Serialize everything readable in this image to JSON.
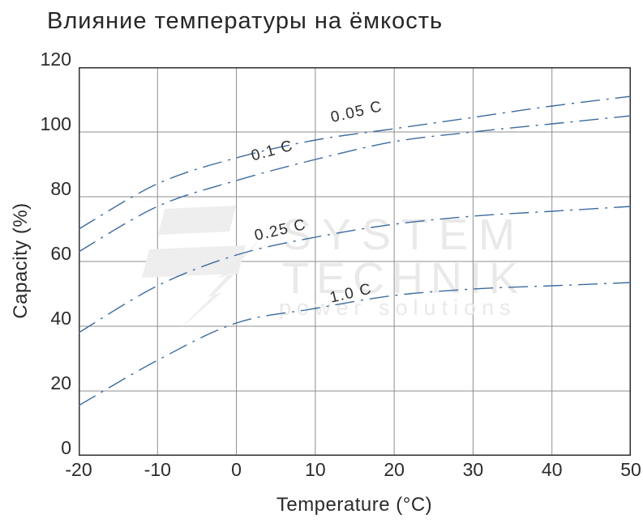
{
  "title": "Влияние температуры на ёмкость",
  "watermark": {
    "line1": "SYSTEM",
    "line2": "TECHNIK",
    "line3": "power solutions",
    "color": "#e9e9e9"
  },
  "colors": {
    "text": "#2b2b2b",
    "grid": "#8f8f8f",
    "border": "#2f2f2f",
    "curve": "#3c6b9e",
    "watermark": "#eeeeee"
  },
  "chart_data": {
    "type": "line",
    "title": "Влияние температуры на ёмкость",
    "xlabel": "Temperature (°C)",
    "ylabel": "Capacity (%)",
    "xlim": [
      -20,
      50
    ],
    "ylim": [
      0,
      120
    ],
    "x_ticks": [
      -20,
      -10,
      0,
      10,
      20,
      30,
      40,
      50
    ],
    "y_ticks": [
      0,
      20,
      40,
      60,
      80,
      100,
      120
    ],
    "grid": true,
    "legend_position": "inline-labels",
    "line_style": "dash-dot",
    "line_color": "#3c6b9e",
    "x": [
      -20,
      -10,
      0,
      10,
      20,
      30,
      40,
      50
    ],
    "series": [
      {
        "name": "0.05 C",
        "values": [
          70,
          84,
          92,
          97.5,
          101,
          104.5,
          108,
          111
        ],
        "label": {
          "text": "0.05 C",
          "x": 15.3,
          "y": 105.5,
          "angle": -13
        }
      },
      {
        "name": "0.1 C",
        "values": [
          63,
          77,
          85,
          91.5,
          97,
          100,
          102.5,
          105
        ],
        "label": {
          "text": "0.1 C",
          "x": 4.6,
          "y": 93.5,
          "angle": -15
        }
      },
      {
        "name": "0.25 C",
        "values": [
          38,
          52.5,
          62,
          67.5,
          71.5,
          74,
          75.5,
          77
        ],
        "label": {
          "text": "0.25 C",
          "x": 5.6,
          "y": 69,
          "angle": -13
        }
      },
      {
        "name": "1.0 C",
        "values": [
          15.5,
          29.5,
          41,
          45.5,
          49.5,
          51.5,
          52.5,
          53.5
        ],
        "label": {
          "text": "1.0 C",
          "x": 14.5,
          "y": 49.5,
          "angle": -13
        }
      }
    ]
  }
}
